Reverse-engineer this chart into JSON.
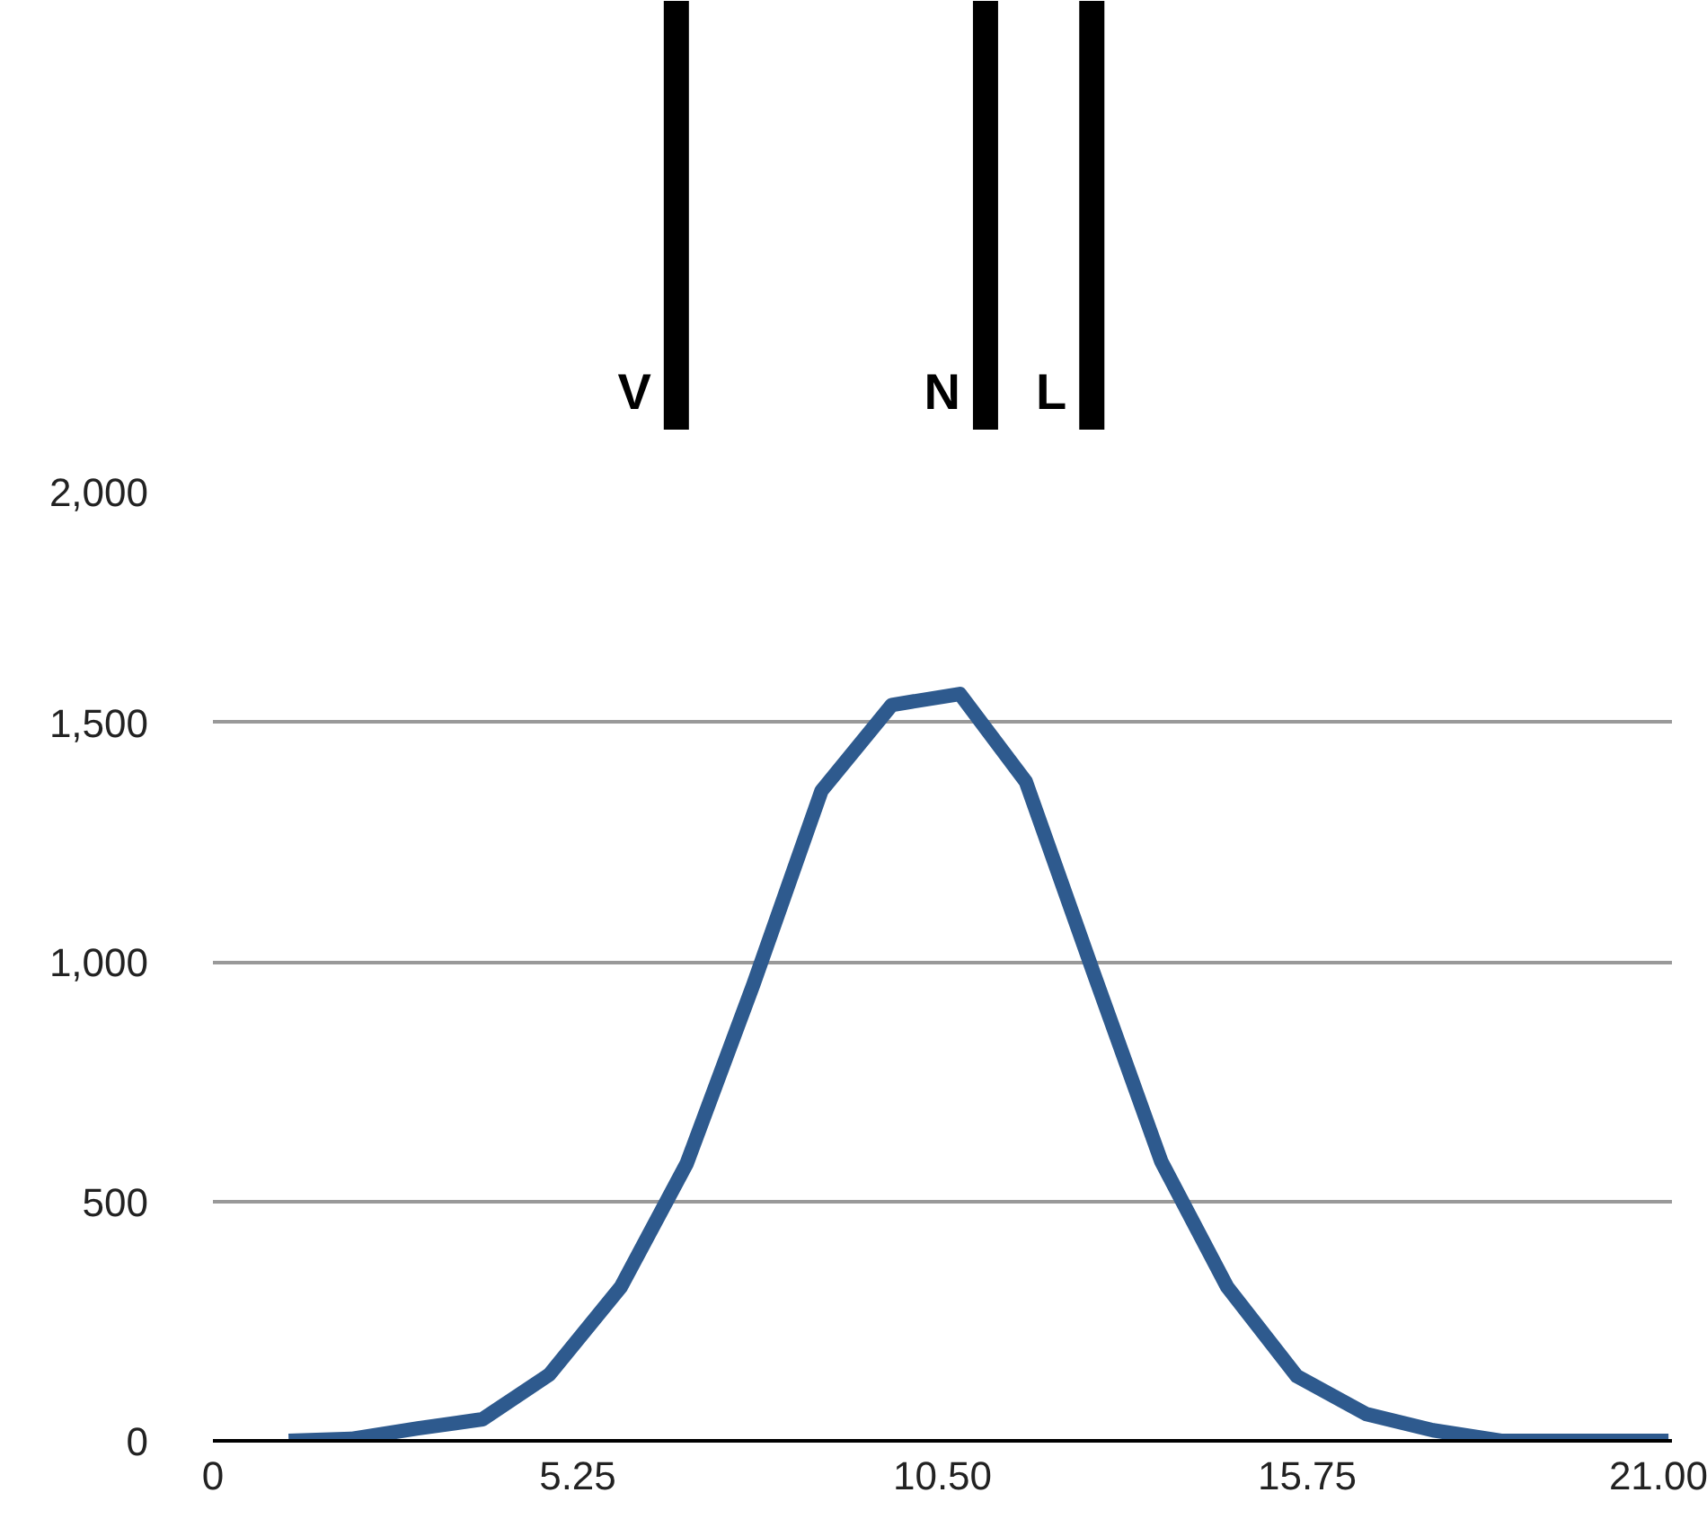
{
  "chart_data": {
    "type": "line",
    "x": [
      1.09,
      1.99,
      2.95,
      3.88,
      4.84,
      5.87,
      6.82,
      7.78,
      8.76,
      9.77,
      10.75,
      11.7,
      12.66,
      13.65,
      14.6,
      15.6,
      16.6,
      17.56,
      18.54,
      19.5,
      20.95
    ],
    "series": [
      {
        "color": "#2e5a8e",
        "values": [
          0,
          4,
          26,
          45,
          138,
          321,
          579,
          953,
          1357,
          1536,
          1559,
          1376,
          983,
          583,
          321,
          135,
          56,
          22,
          0,
          0,
          0
        ]
      }
    ],
    "xlim": [
      0,
      21
    ],
    "xticks": [
      0,
      {
        "value": 5.25,
        "label": "5.25"
      },
      {
        "value": 10.5,
        "label": "10.50"
      },
      {
        "value": 15.75,
        "label": "15.75"
      },
      {
        "value": 21,
        "label": "21.00"
      }
    ],
    "ylim": [
      0,
      2000
    ],
    "yticks": [
      0,
      500,
      {
        "value": 1000,
        "label": "1,000"
      },
      {
        "value": 1500,
        "label": "1,500"
      },
      {
        "value": 2000,
        "label": "2,000"
      }
    ],
    "grid": "y",
    "marker": "none",
    "line_style": "solid",
    "ref_lines": [
      {
        "axis": "x",
        "value": 6.67,
        "label": "V",
        "color": "#000000"
      },
      {
        "axis": "x",
        "value": 11.12,
        "label": "N",
        "color": "#000000"
      },
      {
        "axis": "x",
        "value": 12.65,
        "label": "L",
        "color": "#000000"
      }
    ]
  }
}
